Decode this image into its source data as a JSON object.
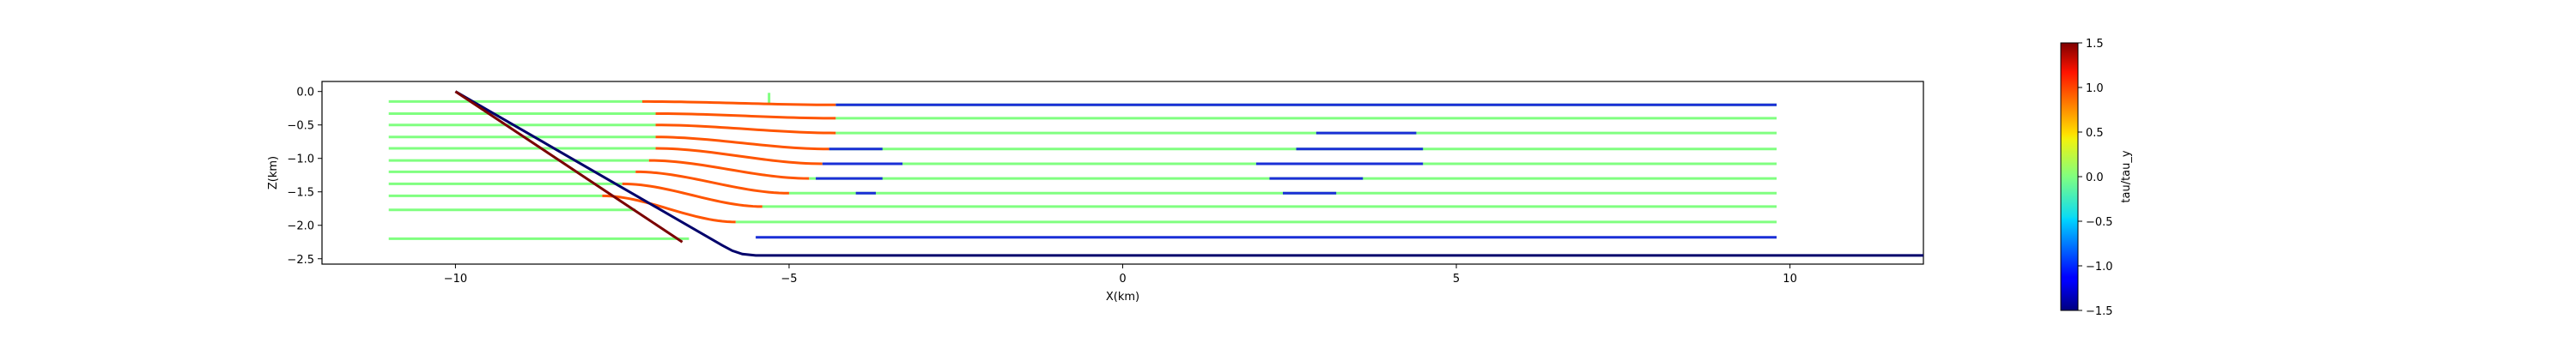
{
  "chart_data": {
    "type": "line",
    "title": "",
    "xlabel": "X(km)",
    "ylabel": "Z(km)",
    "xlim": [
      -12.0,
      12.0
    ],
    "ylim": [
      -2.58,
      0.15
    ],
    "x_ticks": [
      -10,
      -5,
      0,
      5,
      10
    ],
    "x_tick_labels": [
      "−10",
      "−5",
      "0",
      "5",
      "10"
    ],
    "y_ticks": [
      0.0,
      -0.5,
      -1.0,
      -1.5,
      -2.0,
      -2.5
    ],
    "y_tick_labels": [
      "0.0",
      "−0.5",
      "−1.0",
      "−1.5",
      "−2.0",
      "−2.5"
    ],
    "grid": false,
    "colorbar": {
      "label": "tau/tau_y",
      "range": [
        -1.5,
        1.5
      ],
      "ticks": [
        1.5,
        1.0,
        0.5,
        0.0,
        -0.5,
        -1.0,
        -1.5
      ],
      "tick_labels": [
        "1.5",
        "1.0",
        "0.5",
        "0.0",
        "−0.5",
        "−1.0",
        "−1.5"
      ],
      "colormap": "jet"
    },
    "boundary": {
      "name": "bed",
      "color": "#00006b",
      "x": [
        -10.0,
        -6.0,
        -5.85,
        -5.7,
        -5.5,
        12.0
      ],
      "z": [
        0.0,
        -2.3,
        -2.38,
        -2.43,
        -2.45,
        -2.45
      ]
    },
    "ice_front": {
      "x": [
        -10.0,
        -6.6
      ],
      "z": [
        0.0,
        -2.25
      ],
      "color": "#7a0000"
    },
    "flowlines": [
      {
        "z": -0.02,
        "x_start": -5.3,
        "x_end": -5.3,
        "curve_start": -5.8,
        "curve_end": -4.4,
        "z_end": -0.2
      },
      {
        "z": -0.15,
        "x_start": -11.0,
        "curve_start": -7.2,
        "curve_end": -4.3,
        "z_end": -0.2,
        "x_end": 9.8
      },
      {
        "z": -0.33,
        "x_start": -11.0,
        "curve_start": -7.0,
        "curve_end": -4.3,
        "z_end": -0.4,
        "x_end": 9.8
      },
      {
        "z": -0.5,
        "x_start": -11.0,
        "curve_start": -7.0,
        "curve_end": -4.3,
        "z_end": -0.62,
        "x_end": 9.8
      },
      {
        "z": -0.68,
        "x_start": -11.0,
        "curve_start": -7.0,
        "curve_end": -4.4,
        "z_end": -0.86,
        "x_end": 9.8
      },
      {
        "z": -0.85,
        "x_start": -11.0,
        "curve_start": -7.0,
        "curve_end": -4.5,
        "z_end": -1.08,
        "x_end": 9.8
      },
      {
        "z": -1.03,
        "x_start": -11.0,
        "curve_start": -7.1,
        "curve_end": -4.7,
        "z_end": -1.3,
        "x_end": 9.8
      },
      {
        "z": -1.2,
        "x_start": -11.0,
        "curve_start": -7.3,
        "curve_end": -5.0,
        "z_end": -1.52,
        "x_end": 9.8
      },
      {
        "z": -1.38,
        "x_start": -11.0,
        "curve_start": -7.5,
        "curve_end": -5.4,
        "z_end": -1.72,
        "x_end": 9.8
      },
      {
        "z": -1.56,
        "x_start": -11.0,
        "curve_start": -7.8,
        "curve_end": -5.8,
        "z_end": -1.95,
        "x_end": 9.8
      },
      {
        "z": -1.77,
        "x_start": -11.0,
        "x_end": -7.3,
        "z_end": -1.77
      },
      {
        "z": -2.2,
        "x_start": -11.0,
        "x_end": -6.5,
        "z_end": -2.2
      }
    ],
    "flowline_colors": {
      "background": "#80ff80",
      "high_stress": "#ff5500",
      "low_stress": "#1a2fd6"
    },
    "top_line": {
      "x": [
        -4.3,
        9.8
      ],
      "z": -0.2,
      "color": "#1a2fd6"
    },
    "bottom_line": {
      "x": [
        -5.5,
        9.8
      ],
      "z": -2.18,
      "color": "#1a2fd6"
    },
    "blue_segments": [
      {
        "x": [
          2.9,
          4.4
        ],
        "z": -0.62
      },
      {
        "x": [
          2.6,
          4.5
        ],
        "z": -0.86
      },
      {
        "x": [
          2.0,
          4.5
        ],
        "z": -1.08
      },
      {
        "x": [
          2.2,
          3.6
        ],
        "z": -1.3
      },
      {
        "x": [
          2.4,
          3.2
        ],
        "z": -1.52
      },
      {
        "x": [
          -4.4,
          -3.6
        ],
        "z": -0.86
      },
      {
        "x": [
          -4.5,
          -3.3
        ],
        "z": -1.08
      },
      {
        "x": [
          -4.6,
          -3.6
        ],
        "z": -1.3
      },
      {
        "x": [
          -4.0,
          -3.7
        ],
        "z": -1.52
      }
    ]
  }
}
